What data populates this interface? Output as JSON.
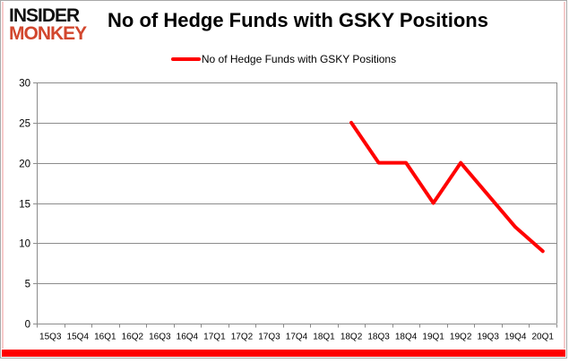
{
  "brand": {
    "line1": "INSIDER",
    "line2": "MONKEY",
    "monkey_color": "#d2472e",
    "insider_color": "#111111"
  },
  "header": {
    "title": "No of Hedge Funds with GSKY Positions"
  },
  "legend": {
    "label": "No of Hedge Funds with GSKY Positions",
    "swatch_color": "#ff0000"
  },
  "frame": {
    "border_color": "#a8a8a8",
    "inner_line_color": "#f6cbcb",
    "accent_bar_color": "#fe0000"
  },
  "chart_data": {
    "type": "line",
    "title": "No of Hedge Funds with GSKY Positions",
    "categories": [
      "15Q3",
      "15Q4",
      "16Q1",
      "16Q2",
      "16Q3",
      "16Q4",
      "17Q1",
      "17Q2",
      "17Q3",
      "17Q4",
      "18Q1",
      "18Q2",
      "18Q3",
      "18Q4",
      "19Q1",
      "19Q2",
      "19Q3",
      "19Q4",
      "20Q1"
    ],
    "series": [
      {
        "name": "No of Hedge Funds with GSKY Positions",
        "color": "#ff0000",
        "values": [
          null,
          null,
          null,
          null,
          null,
          null,
          null,
          null,
          null,
          null,
          null,
          25,
          20,
          20,
          15,
          20,
          16,
          12,
          9
        ]
      }
    ],
    "xlabel": "",
    "ylabel": "",
    "ylim": [
      0,
      30
    ],
    "yticks": [
      0,
      5,
      10,
      15,
      20,
      25,
      30
    ],
    "grid": true,
    "legend_position": "top-center",
    "axis_color": "#8c8c8c",
    "line_width": 4
  }
}
